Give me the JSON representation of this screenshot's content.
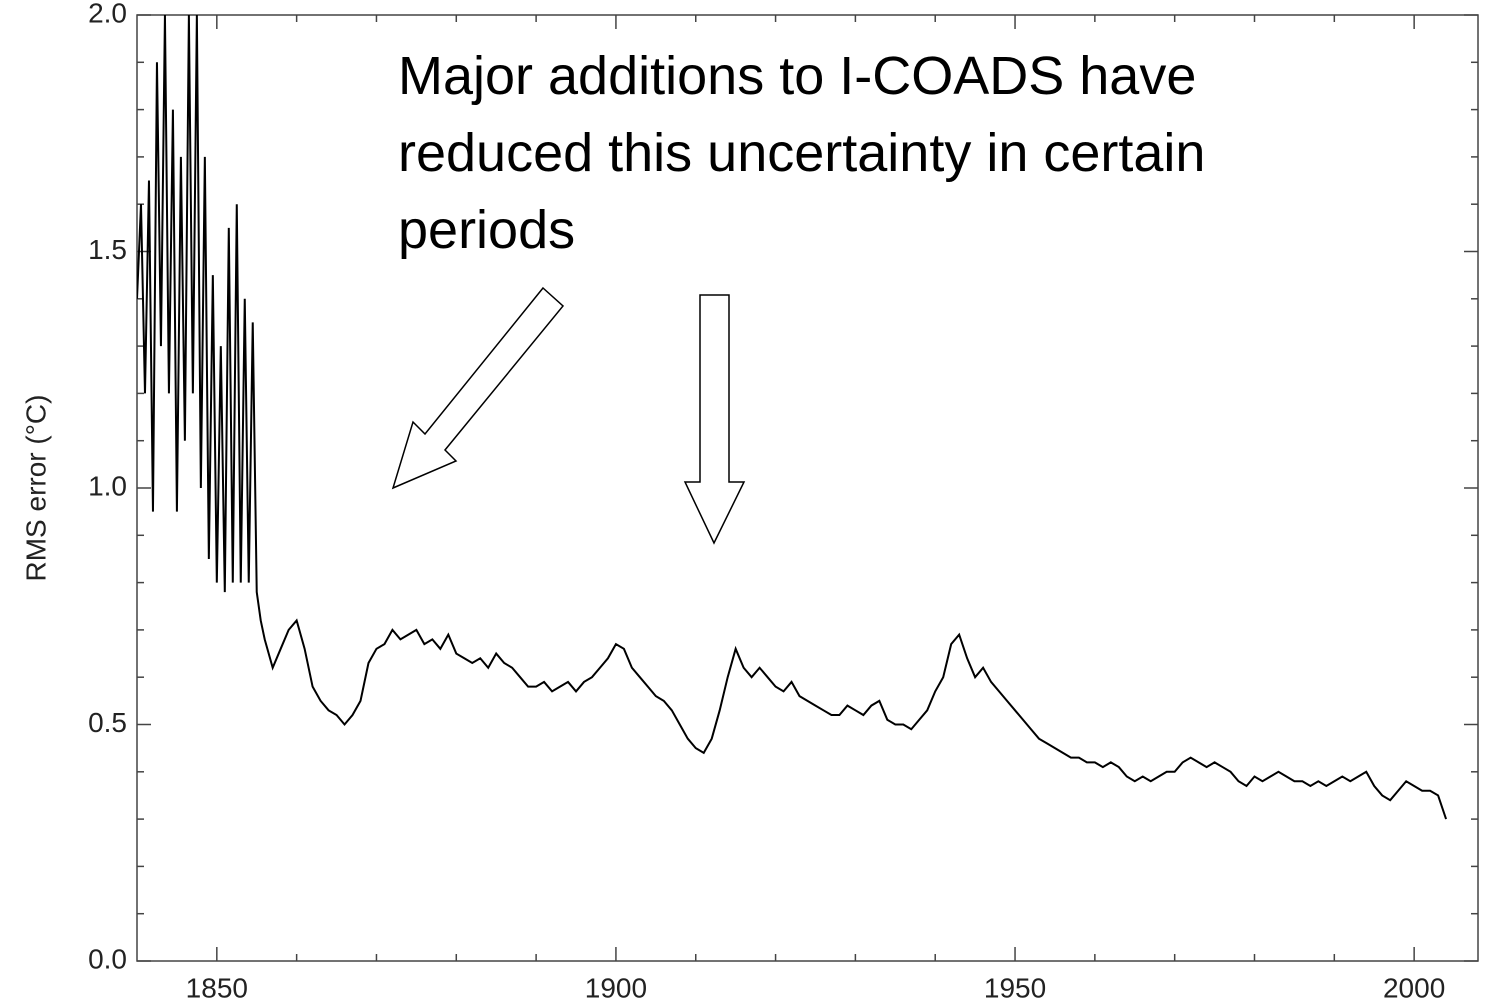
{
  "chart_data": {
    "type": "line",
    "ylabel": "RMS error (°C)",
    "annotation": "Major additions to I-COADS have reduced this uncertainty in certain periods",
    "color": "#000000",
    "xlim": [
      1840,
      2008
    ],
    "xticks": [
      1850,
      1900,
      1950,
      2000
    ],
    "xminor_ticks": [
      1860,
      1870,
      1880,
      1890,
      1910,
      1920,
      1930,
      1940,
      1960,
      1970,
      1980,
      1990
    ],
    "ylim": [
      0,
      2
    ],
    "yticks": [
      {
        "value": 0,
        "label": "0.0"
      },
      0.5,
      {
        "value": 1,
        "label": "1.0"
      },
      1.5,
      {
        "value": 2,
        "label": "2.0"
      }
    ],
    "yminor_ticks": [
      0.1,
      0.2,
      0.3,
      0.4,
      0.6,
      0.7,
      0.8,
      0.9,
      1.1,
      1.2,
      1.3,
      1.4,
      1.6,
      1.7,
      1.8,
      1.9
    ],
    "x": [
      1840,
      1840.5,
      1841,
      1841.5,
      1842,
      1842.5,
      1843,
      1843.5,
      1844,
      1844.5,
      1845,
      1845.5,
      1846,
      1846.5,
      1847,
      1847.5,
      1848,
      1848.5,
      1849,
      1849.5,
      1850,
      1850.5,
      1851,
      1851.5,
      1852,
      1852.5,
      1853,
      1853.5,
      1854,
      1854.5,
      1855,
      1855.5,
      1856,
      1857,
      1858,
      1859,
      1860,
      1861,
      1862,
      1863,
      1864,
      1865,
      1866,
      1867,
      1868,
      1869,
      1870,
      1871,
      1872,
      1873,
      1874,
      1875,
      1876,
      1877,
      1878,
      1879,
      1880,
      1881,
      1882,
      1883,
      1884,
      1885,
      1886,
      1887,
      1888,
      1889,
      1890,
      1891,
      1892,
      1893,
      1894,
      1895,
      1896,
      1897,
      1898,
      1899,
      1900,
      1901,
      1902,
      1903,
      1904,
      1905,
      1906,
      1907,
      1908,
      1909,
      1910,
      1911,
      1912,
      1913,
      1914,
      1915,
      1916,
      1917,
      1918,
      1919,
      1920,
      1921,
      1922,
      1923,
      1924,
      1925,
      1926,
      1927,
      1928,
      1929,
      1930,
      1931,
      1932,
      1933,
      1934,
      1935,
      1936,
      1937,
      1938,
      1939,
      1940,
      1941,
      1942,
      1943,
      1944,
      1945,
      1946,
      1947,
      1948,
      1949,
      1950,
      1951,
      1952,
      1953,
      1954,
      1955,
      1956,
      1957,
      1958,
      1959,
      1960,
      1961,
      1962,
      1963,
      1964,
      1965,
      1966,
      1967,
      1968,
      1969,
      1970,
      1971,
      1972,
      1973,
      1974,
      1975,
      1976,
      1977,
      1978,
      1979,
      1980,
      1981,
      1982,
      1983,
      1984,
      1985,
      1986,
      1987,
      1988,
      1989,
      1990,
      1991,
      1992,
      1993,
      1994,
      1995,
      1996,
      1997,
      1998,
      1999,
      2000,
      2001,
      2002,
      2003,
      2004
    ],
    "values": [
      1.4,
      1.6,
      1.2,
      1.65,
      0.95,
      1.9,
      1.3,
      2.0,
      1.2,
      1.8,
      0.95,
      1.7,
      1.1,
      2.0,
      1.2,
      2.0,
      1.0,
      1.7,
      0.85,
      1.45,
      0.8,
      1.3,
      0.78,
      1.55,
      0.8,
      1.6,
      0.8,
      1.4,
      0.8,
      1.35,
      0.78,
      0.72,
      0.68,
      0.62,
      0.66,
      0.7,
      0.72,
      0.66,
      0.58,
      0.55,
      0.53,
      0.52,
      0.5,
      0.52,
      0.55,
      0.63,
      0.66,
      0.67,
      0.7,
      0.68,
      0.69,
      0.7,
      0.67,
      0.68,
      0.66,
      0.69,
      0.65,
      0.64,
      0.63,
      0.64,
      0.62,
      0.65,
      0.63,
      0.62,
      0.6,
      0.58,
      0.58,
      0.59,
      0.57,
      0.58,
      0.59,
      0.57,
      0.59,
      0.6,
      0.62,
      0.64,
      0.67,
      0.66,
      0.62,
      0.6,
      0.58,
      0.56,
      0.55,
      0.53,
      0.5,
      0.47,
      0.45,
      0.44,
      0.47,
      0.53,
      0.6,
      0.66,
      0.62,
      0.6,
      0.62,
      0.6,
      0.58,
      0.57,
      0.59,
      0.56,
      0.55,
      0.54,
      0.53,
      0.52,
      0.52,
      0.54,
      0.53,
      0.52,
      0.54,
      0.55,
      0.51,
      0.5,
      0.5,
      0.49,
      0.51,
      0.53,
      0.57,
      0.6,
      0.67,
      0.69,
      0.64,
      0.6,
      0.62,
      0.59,
      0.57,
      0.55,
      0.53,
      0.51,
      0.49,
      0.47,
      0.46,
      0.45,
      0.44,
      0.43,
      0.43,
      0.42,
      0.42,
      0.41,
      0.42,
      0.41,
      0.39,
      0.38,
      0.39,
      0.38,
      0.39,
      0.4,
      0.4,
      0.42,
      0.43,
      0.42,
      0.41,
      0.42,
      0.41,
      0.4,
      0.38,
      0.37,
      0.39,
      0.38,
      0.39,
      0.4,
      0.39,
      0.38,
      0.38,
      0.37,
      0.38,
      0.37,
      0.38,
      0.39,
      0.38,
      0.39,
      0.4,
      0.37,
      0.35,
      0.34,
      0.36,
      0.38,
      0.37,
      0.36,
      0.36,
      0.35,
      0.3
    ]
  }
}
